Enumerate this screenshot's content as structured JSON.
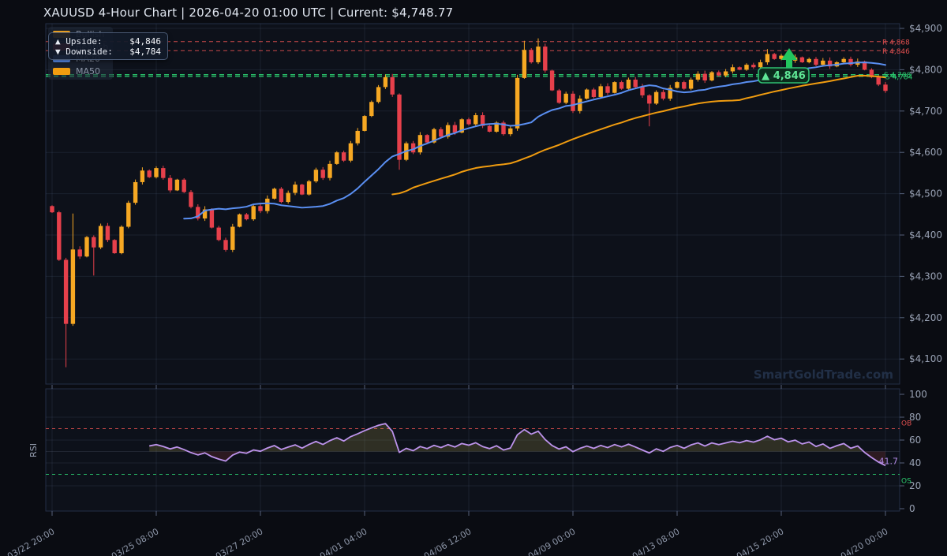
{
  "header": {
    "title": "XAUUSD  4-Hour Chart  |  2026-04-20 01:00 UTC  |  Current: $4,748.77"
  },
  "tooltip": {
    "rows": [
      {
        "icon": "▲",
        "label": "Upside:",
        "value": "$4,846"
      },
      {
        "icon": "▼",
        "label": "Downside:",
        "value": "$4,784"
      }
    ]
  },
  "legend": {
    "items": [
      {
        "label": "Bullish",
        "color": "#f6a823"
      },
      {
        "label": "Bearish",
        "color": "#e6404b"
      },
      {
        "label": "MA20",
        "color": "#5a8ff2"
      },
      {
        "label": "MA50",
        "color": "#f09c10"
      }
    ]
  },
  "watermark": "SmartGoldTrade.com",
  "annotation": {
    "label": "▲ 4,846",
    "bar_index": 105
  },
  "levels": {
    "resistance": [
      {
        "value": 4868,
        "label": "R 4,868"
      },
      {
        "value": 4846,
        "label": "R 4,846"
      }
    ],
    "support": [
      {
        "value": 4788,
        "label": "S 4,788"
      },
      {
        "value": 4784,
        "label": "S 4,784"
      }
    ]
  },
  "price_axis": {
    "ticks": [
      {
        "value": 4900,
        "label": "$4,900"
      },
      {
        "value": 4800,
        "label": "$4,800"
      },
      {
        "value": 4700,
        "label": "$4,700"
      },
      {
        "value": 4600,
        "label": "$4,600"
      },
      {
        "value": 4500,
        "label": "$4,500"
      },
      {
        "value": 4400,
        "label": "$4,400"
      },
      {
        "value": 4300,
        "label": "$4,300"
      },
      {
        "value": 4200,
        "label": "$4,200"
      },
      {
        "value": 4100,
        "label": "$4,100"
      }
    ]
  },
  "time_axis": {
    "labels": [
      "03/22 20:00",
      "03/25 08:00",
      "03/27 20:00",
      "04/01 04:00",
      "04/06 12:00",
      "04/09 00:00",
      "04/13 08:00",
      "04/15 20:00",
      "04/20 00:00"
    ],
    "bar_indices": [
      0,
      15,
      30,
      45,
      60,
      75,
      90,
      105,
      120
    ]
  },
  "rsi_panel": {
    "axis_label": "RSI",
    "ob_label": "OB",
    "os_label": "OS",
    "overbought": 70,
    "oversold": 30,
    "current_label": "41.7",
    "ticks": [
      100,
      80,
      60,
      40,
      20,
      0
    ]
  },
  "colors": {
    "bull": "#f6a823",
    "bear": "#e6404b",
    "ma20": "#5a8ff2",
    "ma50": "#f09c10",
    "resistance": "#e05050",
    "support": "#2bc96e",
    "rsi_line": "#bd93ec",
    "rsi_fill_above": "rgba(185,170,80,0.20)",
    "rsi_fill_below": "rgba(160,60,60,0.22)",
    "annotation_green": "#22c55e",
    "grid": "rgba(98,118,155,0.16)",
    "spine": "#242e45",
    "axis_text": "#99a2b4",
    "date_text": "#8d96a8",
    "watermark": "#24334b",
    "panel_bg": "#0d111a"
  },
  "chart_data": {
    "type": "candlestick",
    "symbol": "XAUUSD",
    "interval": "4-hour",
    "current_price": 4748.77,
    "price_range_visible": [
      4040,
      4910
    ],
    "first_open": 4470,
    "closes": [
      4455,
      4340,
      4185,
      4365,
      4348,
      4395,
      4370,
      4422,
      4388,
      4356,
      4420,
      4478,
      4528,
      4556,
      4540,
      4562,
      4538,
      4508,
      4534,
      4504,
      4468,
      4440,
      4462,
      4418,
      4388,
      4364,
      4420,
      4450,
      4438,
      4470,
      4458,
      4488,
      4512,
      4480,
      4502,
      4522,
      4498,
      4530,
      4558,
      4538,
      4572,
      4600,
      4580,
      4622,
      4652,
      4688,
      4722,
      4758,
      4782,
      4740,
      4582,
      4622,
      4600,
      4642,
      4624,
      4656,
      4638,
      4666,
      4648,
      4680,
      4668,
      4690,
      4664,
      4650,
      4672,
      4644,
      4658,
      4780,
      4848,
      4818,
      4856,
      4798,
      4750,
      4720,
      4742,
      4700,
      4730,
      4752,
      4734,
      4760,
      4744,
      4770,
      4754,
      4776,
      4758,
      4738,
      4718,
      4746,
      4730,
      4756,
      4770,
      4754,
      4776,
      4790,
      4774,
      4794,
      4786,
      4796,
      4806,
      4800,
      4812,
      4806,
      4818,
      4838,
      4826,
      4834,
      4822,
      4830,
      4818,
      4826,
      4812,
      4822,
      4808,
      4818,
      4826,
      4812,
      4820,
      4800,
      4782,
      4764,
      4748.77
    ],
    "wick_overrides": {
      "2": {
        "low": 4080
      },
      "3": {
        "high": 4452
      },
      "6": {
        "low": 4302
      },
      "50": {
        "low": 4558
      },
      "68": {
        "high": 4870
      },
      "70": {
        "high": 4876
      },
      "86": {
        "low": 4663
      },
      "103": {
        "high": 4850
      }
    },
    "overlays": [
      {
        "name": "MA20",
        "period": 20
      },
      {
        "name": "MA50",
        "period": 50
      }
    ],
    "rsi": {
      "period": 14,
      "current": 41.7,
      "overbought": 70,
      "oversold": 30
    }
  }
}
